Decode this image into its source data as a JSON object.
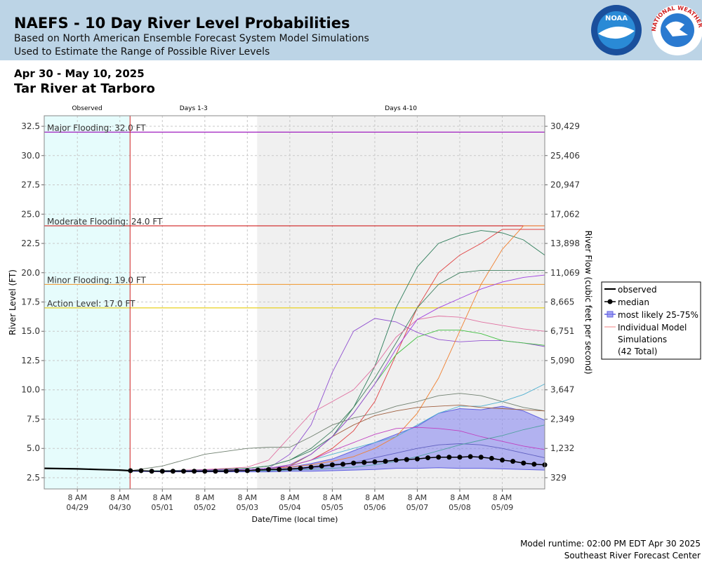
{
  "header": {
    "title": "NAEFS - 10 Day River Level Probabilities",
    "subtitle1": "Based on North American Ensemble Forecast System Model Simulations",
    "subtitle2": "Used to Estimate the Range of Possible River Levels",
    "logo1": "NOAA",
    "logo2": "NATIONAL WEATHER SERVICE"
  },
  "chart_data": {
    "type": "line",
    "date_range": "Apr 30 - May 10, 2025",
    "title": "Tar River at Tarboro",
    "ylabel": "River Level (FT)",
    "y2label": "River Flow (cubic feet per second)",
    "xlabel": "Date/Time (local time)",
    "xlim": [
      -0.78,
      11.0
    ],
    "ylim": [
      1.54,
      33.4
    ],
    "grid": true,
    "yticks": [
      2.5,
      5.0,
      7.5,
      10.0,
      12.5,
      15.0,
      17.5,
      20.0,
      22.5,
      25.0,
      27.5,
      30.0,
      32.5
    ],
    "y2ticks": [
      {
        "value": 329,
        "label": "329"
      },
      {
        "value": 1232,
        "label": "1,232"
      },
      {
        "value": 2349,
        "label": "2,349"
      },
      {
        "value": 3647,
        "label": "3,647"
      },
      {
        "value": 5090,
        "label": "5,090"
      },
      {
        "value": 6751,
        "label": "6,751"
      },
      {
        "value": 8665,
        "label": "8,665"
      },
      {
        "value": 11069,
        "label": "11,069"
      },
      {
        "value": 13898,
        "label": "13,898"
      },
      {
        "value": 17062,
        "label": "17,062"
      },
      {
        "value": 20947,
        "label": "20,947"
      },
      {
        "value": 25406,
        "label": "25,406"
      },
      {
        "value": 30429,
        "label": "30,429"
      }
    ],
    "xticks": [
      {
        "value": 0,
        "label": "8 AM",
        "date": "04/29"
      },
      {
        "value": 1,
        "label": "8 AM",
        "date": "04/30"
      },
      {
        "value": 2,
        "label": "8 AM",
        "date": "05/01"
      },
      {
        "value": 3,
        "label": "8 AM",
        "date": "05/02"
      },
      {
        "value": 4,
        "label": "8 AM",
        "date": "05/03"
      },
      {
        "value": 5,
        "label": "8 AM",
        "date": "05/04"
      },
      {
        "value": 6,
        "label": "8 AM",
        "date": "05/05"
      },
      {
        "value": 7,
        "label": "8 AM",
        "date": "05/06"
      },
      {
        "value": 8,
        "label": "8 AM",
        "date": "05/07"
      },
      {
        "value": 9,
        "label": "8 AM",
        "date": "05/08"
      },
      {
        "value": 10,
        "label": "8 AM",
        "date": "05/09"
      }
    ],
    "regions": [
      {
        "label": "Observed",
        "start": -0.78,
        "end": 1.24,
        "color": "#e6fcfc"
      },
      {
        "label": "Days 1-3",
        "start": 1.24,
        "end": 4.23,
        "color": "#ffffff"
      },
      {
        "label": "Days 4-10",
        "start": 4.23,
        "end": 11.0,
        "color": "#f0f0f0"
      }
    ],
    "forecast_start": 1.24,
    "thresholds": [
      {
        "label": "Major Flooding: 32.0 FT",
        "value": 32.0,
        "color": "#a020c0"
      },
      {
        "label": "Moderate Flooding: 24.0 FT",
        "value": 24.0,
        "color": "#d02020"
      },
      {
        "label": "Minor Flooding: 19.0 FT",
        "value": 19.0,
        "color": "#f0a040"
      },
      {
        "label": "Action Level: 17.0 FT",
        "value": 17.0,
        "color": "#e8d020"
      }
    ],
    "observed": {
      "name": "observed",
      "color": "#000000",
      "x": [
        -0.78,
        0,
        0.5,
        1.0,
        1.24
      ],
      "values": [
        3.3,
        3.25,
        3.2,
        3.15,
        3.1
      ]
    },
    "median": {
      "name": "median",
      "color": "#000000",
      "x": [
        1.25,
        1.5,
        1.75,
        2.0,
        2.25,
        2.5,
        2.75,
        3.0,
        3.25,
        3.5,
        3.75,
        4.0,
        4.25,
        4.5,
        4.75,
        5.0,
        5.25,
        5.5,
        5.75,
        6.0,
        6.25,
        6.5,
        6.75,
        7.0,
        7.25,
        7.5,
        7.75,
        8.0,
        8.25,
        8.5,
        8.75,
        9.0,
        9.25,
        9.5,
        9.75,
        10.0,
        10.25,
        10.5,
        10.75,
        11.0
      ],
      "values": [
        3.1,
        3.1,
        3.05,
        3.05,
        3.05,
        3.05,
        3.05,
        3.05,
        3.05,
        3.05,
        3.1,
        3.1,
        3.15,
        3.2,
        3.2,
        3.25,
        3.3,
        3.4,
        3.5,
        3.6,
        3.65,
        3.75,
        3.8,
        3.85,
        3.9,
        4.0,
        4.05,
        4.1,
        4.2,
        4.25,
        4.25,
        4.25,
        4.3,
        4.25,
        4.15,
        4.0,
        3.9,
        3.75,
        3.65,
        3.6
      ]
    },
    "band": {
      "name": "most likely 25-75%",
      "color": "#8080f0",
      "x": [
        1.25,
        2,
        3,
        4,
        4.5,
        5,
        5.5,
        6,
        6.5,
        7,
        7.5,
        8,
        8.5,
        9,
        9.5,
        10,
        10.5,
        11
      ],
      "high": [
        3.1,
        3.1,
        3.15,
        3.2,
        3.3,
        3.4,
        3.7,
        4.1,
        4.8,
        5.5,
        6.2,
        6.9,
        8.0,
        8.4,
        8.3,
        8.6,
        8.2,
        7.4
      ],
      "low": [
        3.05,
        3.0,
        3.0,
        3.0,
        3.0,
        3.05,
        3.05,
        3.1,
        3.15,
        3.2,
        3.3,
        3.3,
        3.35,
        3.3,
        3.3,
        3.25,
        3.2,
        3.15
      ]
    },
    "simulations_label": {
      "name": "Individual Model",
      "name2": "Simulations",
      "total": "(42 Total)",
      "color": "#f08080"
    },
    "sim_x": [
      1.25,
      2,
      3,
      4,
      4.5,
      5,
      5.5,
      6,
      6.5,
      7,
      7.5,
      8,
      8.5,
      9,
      9.5,
      10,
      10.5,
      11
    ],
    "simulations": [
      {
        "color": "#9050d0",
        "values": [
          3.1,
          3.1,
          3.15,
          3.2,
          3.3,
          4.5,
          7.0,
          11.5,
          15.0,
          16.1,
          15.8,
          14.9,
          14.3,
          14.1,
          14.2,
          14.2,
          14.0,
          13.7
        ]
      },
      {
        "color": "#2e7d5a",
        "values": [
          3.1,
          3.1,
          3.15,
          3.3,
          3.5,
          4.0,
          4.8,
          6.0,
          8.5,
          12.0,
          17.0,
          20.5,
          22.5,
          23.2,
          23.6,
          23.4,
          22.8,
          21.5
        ]
      },
      {
        "color": "#f08030",
        "values": [
          3.1,
          3.1,
          3.15,
          3.2,
          3.3,
          3.4,
          3.6,
          3.9,
          4.3,
          5.0,
          6.0,
          8.0,
          11.0,
          15.0,
          19.0,
          22.0,
          24.0,
          24.0
        ]
      },
      {
        "color": "#e04040",
        "values": [
          3.1,
          3.1,
          3.15,
          3.2,
          3.3,
          3.5,
          4.0,
          5.0,
          6.5,
          9.0,
          13.0,
          17.0,
          20.0,
          21.5,
          22.5,
          23.7,
          23.7,
          23.7
        ]
      },
      {
        "color": "#408060",
        "values": [
          3.1,
          3.1,
          3.15,
          3.3,
          3.5,
          4.0,
          5.0,
          6.5,
          8.5,
          11.0,
          14.0,
          17.0,
          19.0,
          20.0,
          20.2,
          20.2,
          20.2,
          20.2
        ]
      },
      {
        "color": "#e070a0",
        "values": [
          3.1,
          3.1,
          3.2,
          3.4,
          4.0,
          6.0,
          8.0,
          9.0,
          10.0,
          12.0,
          14.5,
          16.0,
          16.3,
          16.2,
          15.8,
          15.5,
          15.2,
          15.0
        ]
      },
      {
        "color": "#708070",
        "values": [
          3.1,
          3.5,
          4.5,
          5.0,
          5.1,
          5.1,
          6.0,
          7.0,
          7.6,
          8.0,
          8.6,
          9.0,
          9.5,
          9.7,
          9.5,
          9.0,
          8.5,
          8.2
        ]
      },
      {
        "color": "#4fb0d0",
        "values": [
          3.1,
          3.1,
          3.15,
          3.2,
          3.3,
          3.5,
          4.0,
          4.5,
          5.0,
          5.5,
          6.0,
          7.0,
          8.0,
          8.6,
          8.6,
          9.0,
          9.6,
          10.5
        ]
      },
      {
        "color": "#a06040",
        "values": [
          3.1,
          3.1,
          3.15,
          3.2,
          3.3,
          3.5,
          4.5,
          6.0,
          7.0,
          7.8,
          8.2,
          8.5,
          8.6,
          8.7,
          8.5,
          8.4,
          8.3,
          8.2
        ]
      },
      {
        "color": "#c040c0",
        "values": [
          3.1,
          3.1,
          3.15,
          3.2,
          3.3,
          3.5,
          4.0,
          4.8,
          5.5,
          6.2,
          6.7,
          6.8,
          6.7,
          6.5,
          6.0,
          5.6,
          5.2,
          4.9
        ]
      },
      {
        "color": "#40c040",
        "values": [
          3.1,
          3.1,
          3.15,
          3.2,
          3.3,
          3.6,
          4.5,
          6.0,
          8.0,
          10.5,
          13.0,
          14.5,
          15.1,
          15.1,
          14.8,
          14.2,
          14.0,
          13.8
        ]
      },
      {
        "color": "#a040e0",
        "values": [
          3.1,
          3.1,
          3.15,
          3.2,
          3.3,
          3.6,
          4.5,
          6.0,
          8.0,
          10.5,
          13.5,
          16.0,
          17.0,
          17.8,
          18.6,
          19.2,
          19.6,
          19.8
        ]
      },
      {
        "color": "#6060c0",
        "values": [
          3.1,
          3.1,
          3.1,
          3.1,
          3.15,
          3.2,
          3.3,
          3.5,
          3.8,
          4.2,
          4.6,
          5.0,
          5.3,
          5.4,
          5.3,
          5.0,
          4.6,
          4.2
        ]
      },
      {
        "color": "#50a0a0",
        "values": [
          3.1,
          3.1,
          3.1,
          3.1,
          3.1,
          3.15,
          3.2,
          3.3,
          3.4,
          3.6,
          3.9,
          4.3,
          4.8,
          5.3,
          5.7,
          6.1,
          6.6,
          7.0
        ]
      }
    ],
    "runtime": "Model runtime: 02:00 PM EDT Apr 30 2025",
    "credit": "Southeast River Forecast Center"
  }
}
